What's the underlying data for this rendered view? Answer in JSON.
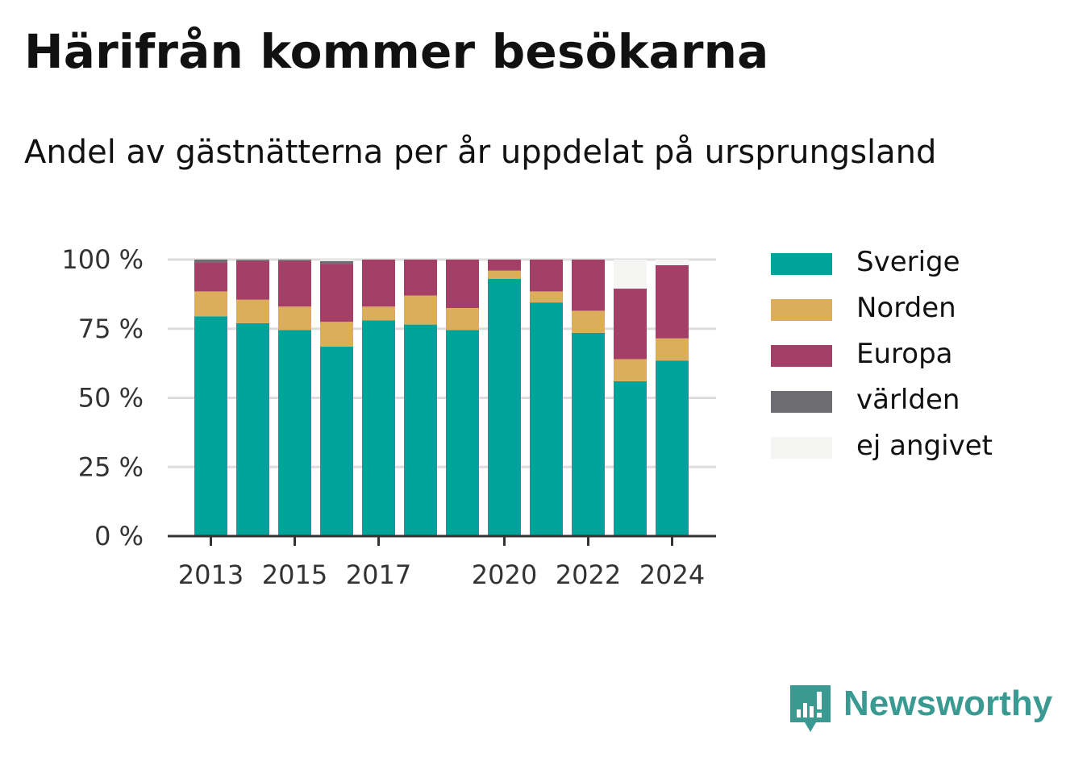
{
  "title": "Härifrån kommer besökarna",
  "subtitle": "Andel av gästnätterna per år uppdelat på ursprungsland",
  "brand": "Newsworthy",
  "colors": {
    "Sverige": "#00a39a",
    "Norden": "#dcae5b",
    "Europa": "#a44067",
    "världen": "#6d6d72",
    "ej angivet": "#f5f5f4",
    "brand": "#3a9a92"
  },
  "chart_data": {
    "type": "bar",
    "stacked": true,
    "categories": [
      "2013",
      "2014",
      "2015",
      "2016",
      "2017",
      "2018",
      "2019",
      "2020",
      "2021",
      "2022",
      "2023",
      "2024"
    ],
    "x_tick_labels": [
      "2013",
      "",
      "2015",
      "",
      "2017",
      "",
      "",
      "2020",
      "",
      "2022",
      "",
      "2024"
    ],
    "y_ticks": [
      "0 %",
      "25 %",
      "50 %",
      "75 %",
      "100 %"
    ],
    "ylim": [
      0,
      100
    ],
    "grid": true,
    "legend_position": "right",
    "series": [
      {
        "name": "Sverige",
        "values": [
          79.5,
          77,
          74.5,
          68.5,
          78,
          76.5,
          74.5,
          93,
          84.5,
          73.5,
          56,
          63.5
        ]
      },
      {
        "name": "Norden",
        "values": [
          9,
          8.5,
          8.5,
          9,
          5,
          10.5,
          8,
          3,
          4,
          8,
          8,
          8
        ]
      },
      {
        "name": "Europa",
        "values": [
          10.5,
          14,
          16.5,
          21,
          17,
          13,
          17.5,
          4,
          11.5,
          18.5,
          25.5,
          26.5
        ]
      },
      {
        "name": "världen",
        "values": [
          1,
          0.5,
          0.5,
          1,
          0,
          0,
          0,
          0,
          0,
          0,
          0,
          0
        ]
      },
      {
        "name": "ej angivet",
        "values": [
          0,
          0,
          0,
          0.5,
          0,
          0,
          0,
          0,
          0,
          0,
          10.5,
          2
        ]
      }
    ]
  }
}
